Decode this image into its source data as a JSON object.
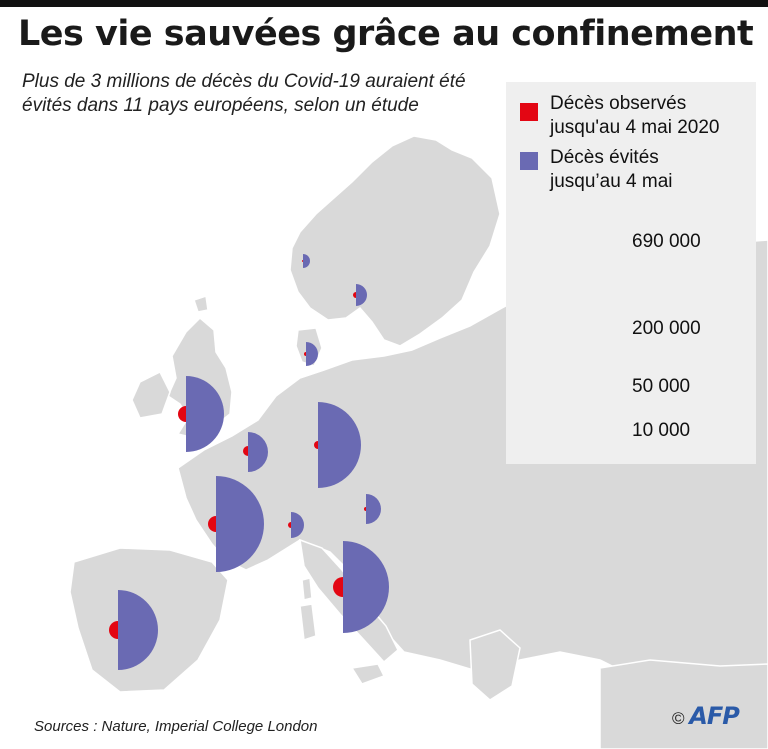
{
  "title": "Les vie sauvées grâce au confinement",
  "subtitle": "Plus de 3 millions de décès du Covid-19 auraient été évités dans 11 pays européens, selon un étude",
  "legend": {
    "observed_label": "Décès observés jusqu'au 4 mai 2020",
    "avoided_label": "Décès évités jusqu’au 4 mai",
    "sizes": [
      "690 000",
      "200 000",
      "50 000",
      "10 000"
    ]
  },
  "colors": {
    "observed": "#e30613",
    "avoided": "#6a6ab3",
    "land": "#d9d9d9",
    "sea": "#ffffff",
    "legend_bg": "#efefef"
  },
  "source": "Sources : Nature, Imperial College London",
  "credit": {
    "symbol": "©",
    "logo": "AFP"
  }
}
